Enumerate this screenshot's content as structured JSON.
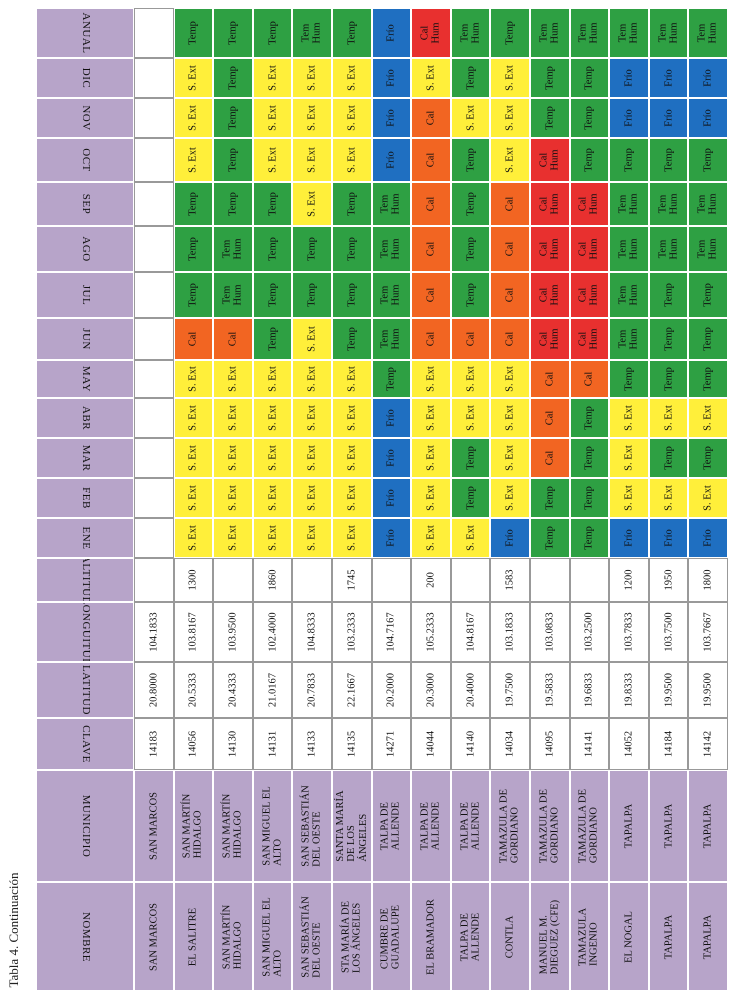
{
  "caption": "Tabla 4. Continuación",
  "colors": {
    "header": "#b7a4c9",
    "Temp": "#2ea043",
    "S.Ext": "#ffef3a",
    "Cal": "#f26522",
    "Frio": "#1f6fc1",
    "TemHum": "#2ea043",
    "CalHum": "#e8302f"
  },
  "headers": [
    "NOMBRE",
    "MUNICIPIO",
    "CLAVE",
    "LATITUD",
    "LONGUITUD",
    "ALTITUD",
    "ENE",
    "FEB",
    "MAR",
    "ABR",
    "MAY",
    "JUN",
    "JUL",
    "AGO",
    "SEP",
    "OCT",
    "NOV",
    "DIC",
    "ANUAL"
  ],
  "rows": [
    {
      "nombre": "SAN MARCOS",
      "municipio": "SAN MARCOS",
      "clave": "14183",
      "latitud": "20.8000",
      "longitud": "104.1833",
      "altitud": "",
      "clima": [
        "",
        "",
        "",
        "",
        "",
        "",
        "",
        "",
        "",
        "",
        "",
        "",
        ""
      ]
    },
    {
      "nombre": "EL SALITRE",
      "municipio": "SAN MARTÍN\nHIDALGO",
      "clave": "14056",
      "latitud": "20.5333",
      "longitud": "103.8167",
      "altitud": "1300",
      "clima": [
        "S. Ext",
        "S. Ext",
        "S. Ext",
        "S. Ext",
        "S. Ext",
        "Cal",
        "Temp",
        "Temp",
        "Temp",
        "S. Ext",
        "S. Ext",
        "S. Ext",
        "Temp"
      ]
    },
    {
      "nombre": "SAN MARTÍN\nHIDALGO",
      "municipio": "SAN MARTÍN\nHIDALGO",
      "clave": "14130",
      "latitud": "20.4333",
      "longitud": "103.9500",
      "altitud": "",
      "clima": [
        "S. Ext",
        "S. Ext",
        "S. Ext",
        "S. Ext",
        "S. Ext",
        "Cal",
        "Tem\nHum",
        "Tem\nHum",
        "Temp",
        "Temp",
        "Temp",
        "Temp",
        "Temp"
      ]
    },
    {
      "nombre": "SAN MIGUEL EL\nALTO",
      "municipio": "SAN MIGUEL EL\nALTO",
      "clave": "14131",
      "latitud": "21.0167",
      "longitud": "102.4000",
      "altitud": "1860",
      "clima": [
        "S. Ext",
        "S. Ext",
        "S. Ext",
        "S. Ext",
        "S. Ext",
        "Temp",
        "Temp",
        "Temp",
        "Temp",
        "S. Ext",
        "S. Ext",
        "S. Ext",
        "Temp"
      ]
    },
    {
      "nombre": "SAN SEBASTIÁN\nDEL OESTE",
      "municipio": "SAN SEBASTIÁN\nDEL OESTE",
      "clave": "14133",
      "latitud": "20.7833",
      "longitud": "104.8333",
      "altitud": "",
      "clima": [
        "S. Ext",
        "S. Ext",
        "S. Ext",
        "S. Ext",
        "S. Ext",
        "S. Ext",
        "Temp",
        "Temp",
        "S. Ext",
        "S. Ext",
        "S. Ext",
        "S. Ext",
        "Tem\nHum"
      ]
    },
    {
      "nombre": "STA MARÍA DE\nLOS ÁNGELES",
      "municipio": "SANTA MARÍA\nDE LOS\nÁNGELES",
      "clave": "14135",
      "latitud": "22.1667",
      "longitud": "103.2333",
      "altitud": "1745",
      "clima": [
        "S. Ext",
        "S. Ext",
        "S. Ext",
        "S. Ext",
        "S. Ext",
        "Temp",
        "Temp",
        "Temp",
        "Temp",
        "S. Ext",
        "S. Ext",
        "S. Ext",
        "Temp"
      ]
    },
    {
      "nombre": "CUMBRE DE\nGUADALUPE",
      "municipio": "TALPA DE\nALLENDE",
      "clave": "14271",
      "latitud": "20.2000",
      "longitud": "104.7167",
      "altitud": "",
      "clima": [
        "Frío",
        "Frío",
        "Frío",
        "Frío",
        "Temp",
        "Tem\nHum",
        "Tem\nHum",
        "Tem\nHum",
        "Tem\nHum",
        "Frío",
        "Frío",
        "Frío",
        "Frío"
      ]
    },
    {
      "nombre": "EL BRAMADOR",
      "municipio": "TALPA DE\nALLENDE",
      "clave": "14044",
      "latitud": "20.3000",
      "longitud": "105.2333",
      "altitud": "200",
      "clima": [
        "S. Ext",
        "S. Ext",
        "S. Ext",
        "S. Ext",
        "S. Ext",
        "Cal",
        "Cal",
        "Cal",
        "Cal",
        "Cal",
        "Cal",
        "S. Ext",
        "Cal\nHum"
      ]
    },
    {
      "nombre": "TALPA DE\nALLENDE",
      "municipio": "TALPA DE\nALLENDE",
      "clave": "14140",
      "latitud": "20.4000",
      "longitud": "104.8167",
      "altitud": "",
      "clima": [
        "S. Ext",
        "Temp",
        "Temp",
        "S. Ext",
        "S. Ext",
        "Cal",
        "Temp",
        "Temp",
        "Temp",
        "Temp",
        "S. Ext",
        "Temp",
        "Tem\nHum"
      ]
    },
    {
      "nombre": "CONTLA",
      "municipio": "TAMAZULA DE\nGORDIANO",
      "clave": "14034",
      "latitud": "19.7500",
      "longitud": "103.1833",
      "altitud": "1583",
      "clima": [
        "Frío",
        "S. Ext",
        "S. Ext",
        "S. Ext",
        "S. Ext",
        "Cal",
        "Cal",
        "Cal",
        "Cal",
        "S. Ext",
        "S. Ext",
        "S. Ext",
        "Temp"
      ]
    },
    {
      "nombre": "MANUEL M.\nDIEGUEZ (CFE)",
      "municipio": "TAMAZULA DE\nGORDIANO",
      "clave": "14095",
      "latitud": "19.5833",
      "longitud": "103.0833",
      "altitud": "",
      "clima": [
        "Temp",
        "Temp",
        "Cal",
        "Cal",
        "Cal",
        "Cal\nHum",
        "Cal\nHum",
        "Cal\nHum",
        "Cal\nHum",
        "Cal\nHum",
        "Temp",
        "Temp",
        "Tem\nHum"
      ]
    },
    {
      "nombre": "TAMAZULA\nINGENIO",
      "municipio": "TAMAZULA DE\nGORDIANO",
      "clave": "14141",
      "latitud": "19.6833",
      "longitud": "103.2500",
      "altitud": "",
      "clima": [
        "Temp",
        "Temp",
        "Temp",
        "Temp",
        "Cal",
        "Cal\nHum",
        "Cal\nHum",
        "Cal\nHum",
        "Cal\nHum",
        "Temp",
        "Temp",
        "Temp",
        "Tem\nHum"
      ]
    },
    {
      "nombre": "EL NOGAL",
      "municipio": "TAPALPA",
      "clave": "14052",
      "latitud": "19.8333",
      "longitud": "103.7833",
      "altitud": "1200",
      "clima": [
        "Frío",
        "S. Ext",
        "S. Ext",
        "S. Ext",
        "Temp",
        "Tem\nHum",
        "Tem\nHum",
        "Tem\nHum",
        "Tem\nHum",
        "Temp",
        "Frío",
        "Frío",
        "Tem\nHum"
      ]
    },
    {
      "nombre": "TAPALPA",
      "municipio": "TAPALPA",
      "clave": "14184",
      "latitud": "19.9500",
      "longitud": "103.7500",
      "altitud": "1950",
      "clima": [
        "Frío",
        "S. Ext",
        "Temp",
        "S. Ext",
        "Temp",
        "Temp",
        "Temp",
        "Tem\nHum",
        "Tem\nHum",
        "Temp",
        "Frío",
        "Frío",
        "Tem\nHum"
      ]
    },
    {
      "nombre": "TAPALPA",
      "municipio": "TAPALPA",
      "clave": "14142",
      "latitud": "19.9500",
      "longitud": "103.7667",
      "altitud": "1800",
      "clima": [
        "Frío",
        "S. Ext",
        "Temp",
        "S. Ext",
        "Temp",
        "Temp",
        "Temp",
        "Tem\nHum",
        "Tem\nHum",
        "Temp",
        "Frío",
        "Frío",
        "Tem\nHum"
      ]
    }
  ]
}
